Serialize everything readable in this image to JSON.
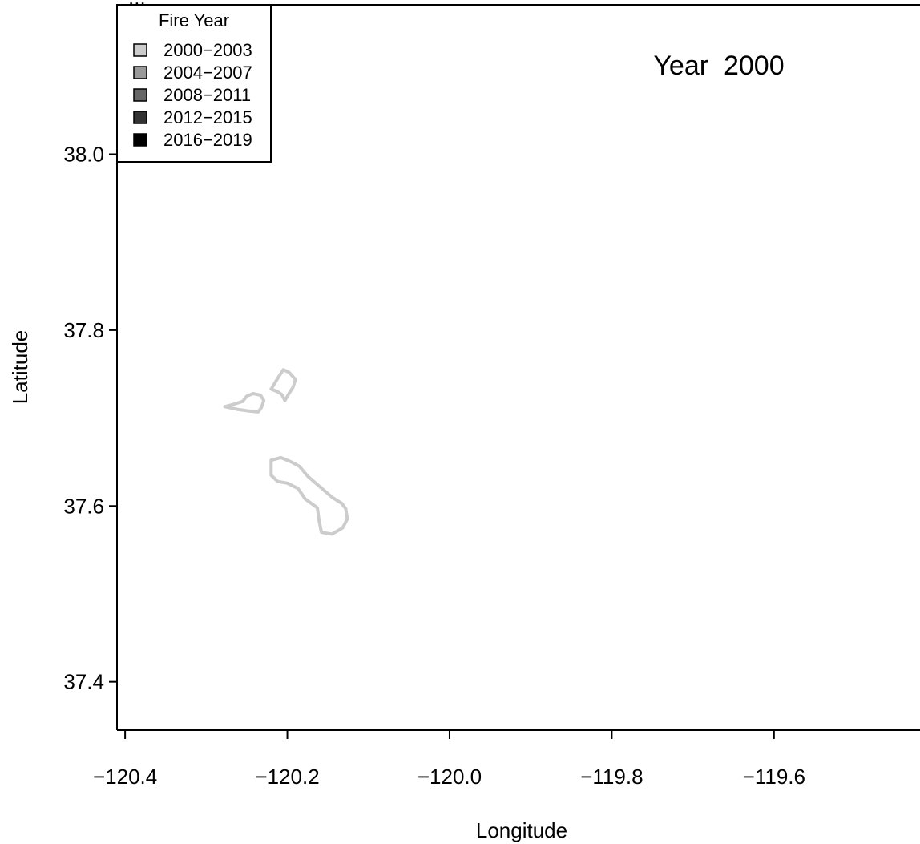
{
  "map": {
    "title_fragment": "...",
    "year_label": "Year  2000",
    "x_axis_title": "Longitude",
    "y_axis_title": "Latitude",
    "x_ticks": [
      {
        "value": -120.4,
        "label": "−120.4"
      },
      {
        "value": -120.2,
        "label": "−120.2"
      },
      {
        "value": -120.0,
        "label": "−120.0"
      },
      {
        "value": -119.8,
        "label": "−119.8"
      },
      {
        "value": -119.6,
        "label": "−119.6"
      }
    ],
    "y_ticks": [
      {
        "value": 38.0,
        "label": "38.0"
      },
      {
        "value": 37.8,
        "label": "37.8"
      },
      {
        "value": 37.6,
        "label": "37.6"
      },
      {
        "value": 37.4,
        "label": "37.4"
      }
    ],
    "x_range": [
      -120.41,
      -119.42
    ],
    "y_range": [
      37.345,
      38.17
    ]
  },
  "legend": {
    "title": "Fire Year",
    "entries": [
      {
        "label": "2000−2003",
        "color": "#cccccc"
      },
      {
        "label": "2004−2007",
        "color": "#999999"
      },
      {
        "label": "2008−2011",
        "color": "#666666"
      },
      {
        "label": "2012−2015",
        "color": "#333333"
      },
      {
        "label": "2016−2019",
        "color": "#000000"
      }
    ]
  },
  "fire_perimeters": [
    {
      "name": "perimeter-west",
      "fire_year_group": "2000−2003",
      "color": "#cccccc",
      "coords": [
        [
          -120.277,
          37.713
        ],
        [
          -120.265,
          37.716
        ],
        [
          -120.255,
          37.719
        ],
        [
          -120.25,
          37.725
        ],
        [
          -120.242,
          37.728
        ],
        [
          -120.233,
          37.726
        ],
        [
          -120.229,
          37.72
        ],
        [
          -120.232,
          37.712
        ],
        [
          -120.236,
          37.707
        ],
        [
          -120.247,
          37.708
        ],
        [
          -120.262,
          37.71
        ],
        [
          -120.277,
          37.713
        ]
      ]
    },
    {
      "name": "perimeter-north",
      "fire_year_group": "2000−2003",
      "color": "#cccccc",
      "coords": [
        [
          -120.212,
          37.745
        ],
        [
          -120.205,
          37.755
        ],
        [
          -120.198,
          37.752
        ],
        [
          -120.19,
          37.744
        ],
        [
          -120.193,
          37.735
        ],
        [
          -120.198,
          37.728
        ],
        [
          -120.203,
          37.72
        ],
        [
          -120.207,
          37.727
        ],
        [
          -120.212,
          37.73
        ],
        [
          -120.22,
          37.733
        ],
        [
          -120.212,
          37.745
        ]
      ]
    },
    {
      "name": "perimeter-south",
      "fire_year_group": "2000−2003",
      "color": "#cccccc",
      "coords": [
        [
          -120.22,
          37.652
        ],
        [
          -120.208,
          37.655
        ],
        [
          -120.195,
          37.65
        ],
        [
          -120.185,
          37.645
        ],
        [
          -120.175,
          37.634
        ],
        [
          -120.16,
          37.622
        ],
        [
          -120.145,
          37.61
        ],
        [
          -120.133,
          37.603
        ],
        [
          -120.128,
          37.597
        ],
        [
          -120.126,
          37.585
        ],
        [
          -120.132,
          37.575
        ],
        [
          -120.145,
          37.568
        ],
        [
          -120.158,
          37.57
        ],
        [
          -120.161,
          37.584
        ],
        [
          -120.163,
          37.598
        ],
        [
          -120.178,
          37.608
        ],
        [
          -120.187,
          37.62
        ],
        [
          -120.2,
          37.626
        ],
        [
          -120.212,
          37.628
        ],
        [
          -120.22,
          37.635
        ],
        [
          -120.22,
          37.652
        ]
      ]
    }
  ]
}
